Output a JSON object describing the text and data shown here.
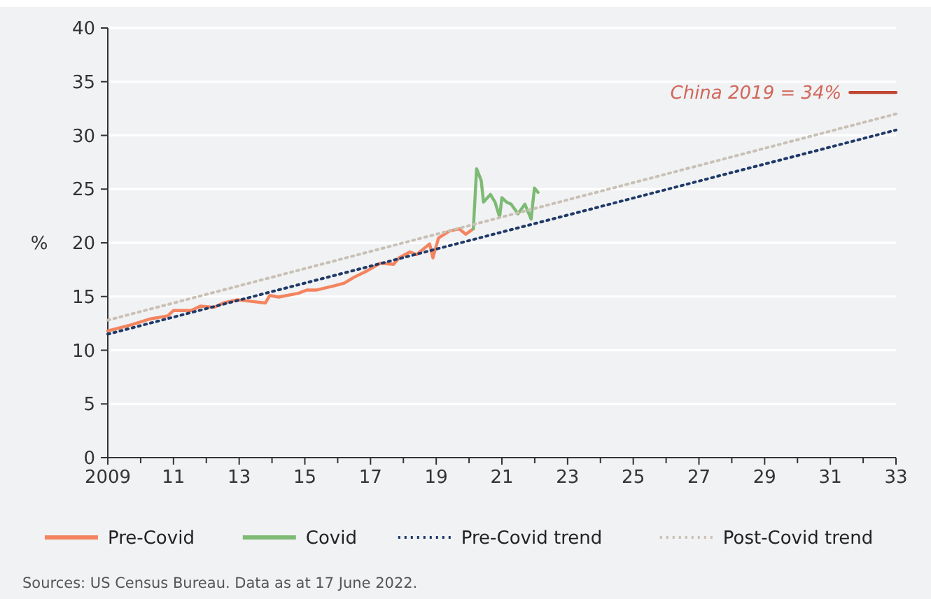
{
  "chart_data": {
    "type": "line",
    "ylabel": "%",
    "xlim": [
      2009,
      2033
    ],
    "ylim": [
      0,
      40
    ],
    "xticks": [
      {
        "value": 2009,
        "label": "2009"
      },
      {
        "value": 2011,
        "label": "11"
      },
      {
        "value": 2013,
        "label": "13"
      },
      {
        "value": 2015,
        "label": "15"
      },
      {
        "value": 2017,
        "label": "17"
      },
      {
        "value": 2019,
        "label": "19"
      },
      {
        "value": 2021,
        "label": "21"
      },
      {
        "value": 2023,
        "label": "23"
      },
      {
        "value": 2025,
        "label": "25"
      },
      {
        "value": 2027,
        "label": "27"
      },
      {
        "value": 2029,
        "label": "29"
      },
      {
        "value": 2031,
        "label": "31"
      },
      {
        "value": 2033,
        "label": "33"
      }
    ],
    "yticks": [
      0,
      5,
      10,
      15,
      20,
      25,
      30,
      35,
      40
    ],
    "grid": "y",
    "legend": "bottom",
    "series": [
      {
        "name": "Pre-Covid",
        "color": "#f4845f",
        "line_style": "solid",
        "x": [
          2009.0,
          2009.7,
          2010.27,
          2010.83,
          2011.0,
          2011.54,
          2011.82,
          2012.24,
          2012.52,
          2012.94,
          2013.5,
          2013.8,
          2013.93,
          2014.2,
          2014.8,
          2015.06,
          2015.34,
          2015.9,
          2016.2,
          2016.5,
          2016.9,
          2017.3,
          2017.7,
          2017.87,
          2018.2,
          2018.4,
          2018.8,
          2018.9,
          2019.07,
          2019.4,
          2019.7,
          2019.9,
          2020.13
        ],
        "values": [
          11.8,
          12.35,
          12.9,
          13.2,
          13.7,
          13.7,
          14.1,
          14.0,
          14.4,
          14.7,
          14.5,
          14.4,
          15.1,
          14.95,
          15.3,
          15.6,
          15.6,
          16.0,
          16.25,
          16.8,
          17.4,
          18.1,
          18.0,
          18.6,
          19.15,
          18.9,
          19.9,
          18.6,
          20.45,
          21.1,
          21.3,
          20.8,
          21.3
        ]
      },
      {
        "name": "Covid",
        "color": "#7dba74",
        "line_style": "solid",
        "x": [
          2020.13,
          2020.23,
          2020.37,
          2020.44,
          2020.65,
          2020.79,
          2020.93,
          2021.0,
          2021.14,
          2021.28,
          2021.49,
          2021.7,
          2021.89,
          2021.99,
          2022.1
        ],
        "values": [
          21.3,
          26.9,
          25.8,
          23.8,
          24.5,
          23.8,
          22.4,
          24.2,
          23.8,
          23.6,
          22.7,
          23.6,
          22.2,
          25.1,
          24.7
        ]
      },
      {
        "name": "Pre-Covid trend",
        "color": "#1f3a68",
        "line_style": "dotted",
        "x": [
          2009,
          2033
        ],
        "values": [
          11.5,
          30.5
        ]
      },
      {
        "name": "Post-Covid trend",
        "color": "#c9c1b5",
        "line_style": "dotted",
        "x": [
          2009,
          2033
        ],
        "values": [
          12.8,
          32
        ]
      },
      {
        "color": "#c0462f",
        "line_style": "solid",
        "x": [
          2031.6,
          2033
        ],
        "values": [
          34,
          34
        ]
      }
    ],
    "annotations": [
      {
        "text": "China 2019 = 34%",
        "x": 2031.6,
        "y": 34
      },
      "Sources: US Census Bureau. Data as at 17 June 2022."
    ]
  }
}
